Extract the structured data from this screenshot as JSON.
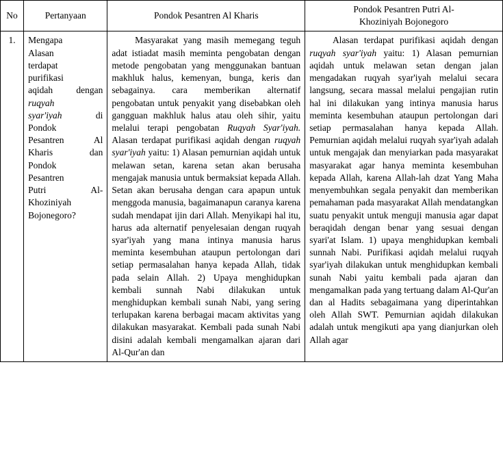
{
  "header": {
    "no": "No",
    "pertanyaan": "Pertanyaan",
    "pondokA": "Pondok Pesantren Al Kharis",
    "pondokB_line1": "Pondok Pesantren  Putri Al-",
    "pondokB_line2": "Khoziniyah  Bojonegoro"
  },
  "row1": {
    "no": "1.",
    "q": {
      "l1": "Mengapa",
      "l2": "Alasan",
      "l3": "terdapat",
      "l4": "purifikasi",
      "l5a": "aqidah ",
      "l5b": "dengan",
      "l6": "ruqyah",
      "l7a": "syar'iyah",
      "l7b": " di",
      "l8": "Pondok",
      "l9a": "Pesantren",
      "l9b": " Al",
      "l10a": "Kharis",
      "l10b": " dan",
      "l11": "Pondok",
      "l12": "Pesantren",
      "l13a": "Putri",
      "l13b": " Al-",
      "l14": "Khoziniyah",
      "l15": "Bojonegoro?"
    },
    "a": {
      "p1a": "Masyarakat yang masih memegang teguh adat istiadat masih meminta pengobatan dengan metode pengobatan yang menggunakan bantuan makhluk halus, kemenyan, bunga, keris dan sebagainya. cara memberikan alternatif pengobatan untuk penyakit yang disebabkan oleh gangguan makhluk halus atau oleh sihir, yaitu melalui terapi pengobatan ",
      "p1b": "Ruqyah Syar'iyah.",
      "p1c": " Alasan terdapat purifikasi aqidah dengan ",
      "p1d": "ruqyah syar'iyah",
      "p1e": " yaitu: 1) Alasan pemurnian aqidah untuk melawan setan, karena setan akan berusaha mengajak manusia untuk bermaksiat kepada Allah. Setan akan berusaha dengan cara apapun untuk menggoda manusia, bagaimanapun caranya karena sudah mendapat ijin dari Allah. Menyikapi hal itu, harus ada alternatif penyelesaian dengan ruqyah syar'iyah yang mana intinya manusia harus meminta kesembuhan ataupun pertolongan dari setiap permasalahan hanya kepada Allah, tidak pada selain Allah. 2) Upaya menghidupkan kembali sunnah Nabi dilakukan untuk menghidupkan kembali sunah Nabi, yang sering terlupakan karena berbagai macam aktivitas yang dilakukan masyarakat. Kembali pada sunah Nabi disini adalah kembali mengamalkan ajaran dari Al-Qur'an dan"
    },
    "b": {
      "p1a": "Alasan terdapat purifikasi aqidah dengan ",
      "p1b": "ruqyah syar'iyah",
      "p1c": " yaitu: 1) Alasan pemurnian aqidah untuk melawan setan dengan jalan mengadakan ruqyah syar'iyah melalui secara langsung, secara massal melalui pengajian rutin hal ini dilakukan yang intinya manusia harus meminta kesembuhan ataupun pertolongan dari setiap permasalahan hanya kepada Allah. Pemurnian aqidah melalui ruqyah syar'iyah adalah untuk mengajak dan menyiarkan pada masyarakat masyarakat agar hanya meminta kesembuhan kepada Allah, karena Allah-lah dzat Yang Maha menyembuhkan segala penyakit dan memberikan pemahaman pada masyarakat Allah mendatangkan suatu penyakit untuk menguji manusia agar dapat beraqidah dengan benar yang sesuai dengan syari'at Islam. 1) upaya menghidupkan kembali sunnah Nabi. Purifikasi aqidah melalui ruqyah syar'iyah dilakukan untuk menghidupkan kembali sunah Nabi yaitu kembali pada ajaran dan mengamalkan pada yang tertuang dalam Al-Qur'an dan al Hadits sebagaimana yang diperintahkan oleh Allah SWT. Pemurnian aqidah dilakukan adalah untuk mengikuti apa yang dianjurkan oleh Allah agar"
    }
  }
}
